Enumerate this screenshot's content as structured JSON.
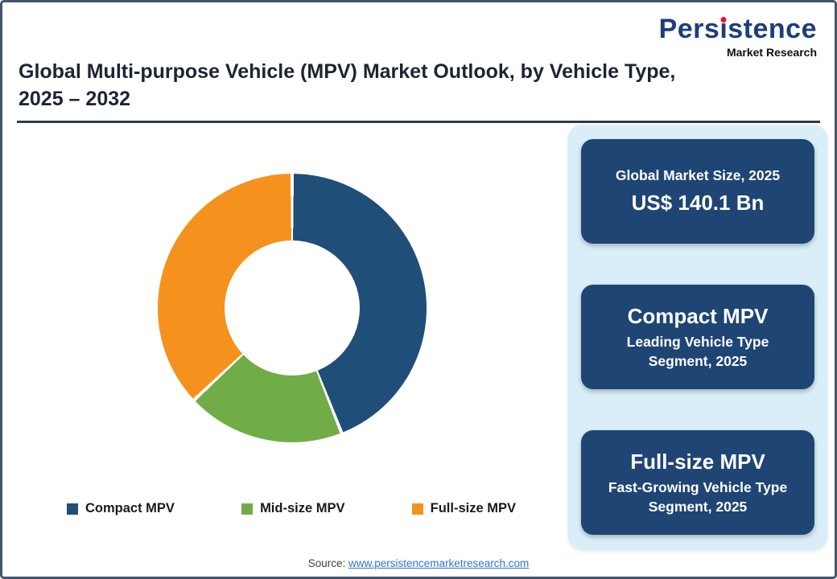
{
  "logo": {
    "name": "Persistence",
    "tagline": "Market Research",
    "brand_color": "#1d3e7b",
    "dot_color": "#e8112d"
  },
  "header": {
    "title": "Global Multi-purpose Vehicle (MPV) Market Outlook, by Vehicle Type,\n2025 – 2032"
  },
  "chart_data": {
    "type": "pie",
    "donut": true,
    "title": "Global Multi-purpose Vehicle (MPV) Market Outlook, by Vehicle Type, 2025 – 2032",
    "categories": [
      "Compact MPV",
      "Mid-size MPV",
      "Full-size MPV"
    ],
    "values": [
      44,
      19,
      37
    ],
    "value_unit": "%",
    "colors": [
      "#1f4e79",
      "#70ad47",
      "#f5921e"
    ],
    "start_angle_deg": 0,
    "direction": "clockwise",
    "legend_position": "bottom"
  },
  "sidebar": {
    "background": "#d9eef8",
    "card_color": "#1e4574",
    "cards": [
      {
        "line1": "Global Market Size, 2025",
        "line2": "US$ 140.1 Bn"
      },
      {
        "line1": "Compact MPV",
        "line2": "Leading Vehicle Type Segment, 2025"
      },
      {
        "line1": "Full-size MPV",
        "line2": "Fast-Growing Vehicle Type Segment, 2025"
      }
    ]
  },
  "footer": {
    "source_label": "Source: ",
    "source_link": "www.persistencemarketresearch.com"
  }
}
